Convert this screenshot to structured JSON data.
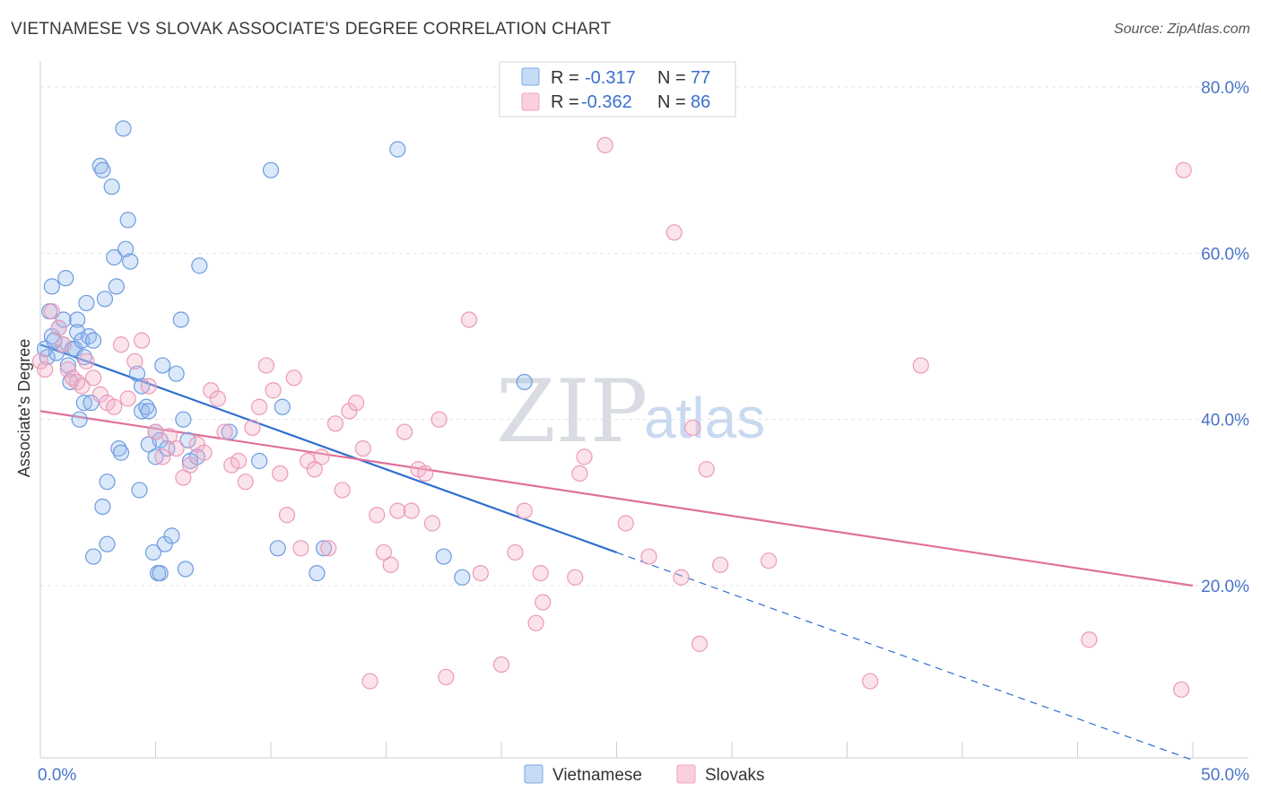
{
  "header": {
    "title": "VIETNAMESE VS SLOVAK ASSOCIATE'S DEGREE CORRELATION CHART",
    "source": "Source: ZipAtlas.com"
  },
  "watermark": {
    "zip": "ZIP",
    "atlas": "atlas"
  },
  "legend": {
    "r_label": "R =",
    "n_label": "N =",
    "rows": [
      {
        "r": "-0.317",
        "n": "77"
      },
      {
        "r": "-0.362",
        "n": "86"
      }
    ]
  },
  "chart_data": {
    "type": "scatter",
    "title": "VIETNAMESE VS SLOVAK ASSOCIATE'S DEGREE CORRELATION CHART",
    "xlabel": "",
    "ylabel": "Associate's Degree",
    "xlim": [
      0,
      50
    ],
    "ylim": [
      0,
      83
    ],
    "x_tick_labels": [
      "0.0%",
      "50.0%"
    ],
    "y_ticks": [
      20,
      40,
      60,
      80
    ],
    "y_tick_labels": [
      "20.0%",
      "40.0%",
      "60.0%",
      "80.0%"
    ],
    "grid": true,
    "legend_position": "top-center",
    "colors": {
      "vietnamese": "#7aa6e6",
      "slovaks": "#f0a3bf",
      "vietnamese_line": "#2f6fd0",
      "slovaks_line": "#e0709a"
    },
    "series": [
      {
        "name": "Vietnamese",
        "r": -0.317,
        "n": 77,
        "trend": {
          "x0": 0,
          "y0": 49.0,
          "x1": 25,
          "y1": 24.0,
          "dash_x1": 50,
          "dash_y1": -1.0
        },
        "points": [
          [
            0.3,
            47.5
          ],
          [
            0.5,
            50.0
          ],
          [
            0.4,
            53.0
          ],
          [
            0.5,
            56.0
          ],
          [
            0.7,
            48.0
          ],
          [
            0.8,
            51.0
          ],
          [
            1.0,
            52.0
          ],
          [
            1.0,
            49.0
          ],
          [
            1.1,
            57.0
          ],
          [
            1.2,
            46.5
          ],
          [
            1.3,
            44.5
          ],
          [
            1.4,
            48.5
          ],
          [
            1.5,
            48.5
          ],
          [
            1.6,
            52.0
          ],
          [
            1.6,
            50.5
          ],
          [
            1.7,
            40.0
          ],
          [
            1.8,
            49.5
          ],
          [
            1.9,
            42.0
          ],
          [
            2.0,
            54.0
          ],
          [
            2.1,
            50.0
          ],
          [
            2.2,
            42.0
          ],
          [
            2.3,
            49.5
          ],
          [
            2.3,
            23.5
          ],
          [
            2.6,
            70.5
          ],
          [
            2.7,
            70.0
          ],
          [
            2.7,
            29.5
          ],
          [
            2.8,
            54.5
          ],
          [
            2.9,
            25.0
          ],
          [
            2.9,
            32.5
          ],
          [
            3.1,
            68.0
          ],
          [
            3.2,
            59.5
          ],
          [
            3.3,
            56.0
          ],
          [
            3.4,
            36.5
          ],
          [
            3.5,
            36.0
          ],
          [
            3.6,
            75.0
          ],
          [
            3.7,
            60.5
          ],
          [
            3.8,
            64.0
          ],
          [
            3.9,
            59.0
          ],
          [
            4.2,
            45.5
          ],
          [
            4.3,
            31.5
          ],
          [
            4.4,
            44.0
          ],
          [
            4.4,
            41.0
          ],
          [
            4.6,
            41.5
          ],
          [
            4.7,
            37.0
          ],
          [
            4.7,
            41.0
          ],
          [
            4.9,
            24.0
          ],
          [
            5.0,
            35.5
          ],
          [
            5.0,
            38.5
          ],
          [
            5.1,
            21.5
          ],
          [
            5.2,
            37.5
          ],
          [
            5.2,
            21.5
          ],
          [
            5.3,
            46.5
          ],
          [
            5.4,
            25.0
          ],
          [
            5.5,
            36.5
          ],
          [
            5.7,
            26.0
          ],
          [
            5.9,
            45.5
          ],
          [
            6.1,
            52.0
          ],
          [
            6.2,
            40.0
          ],
          [
            6.3,
            22.0
          ],
          [
            6.4,
            37.5
          ],
          [
            6.5,
            35.0
          ],
          [
            6.8,
            35.5
          ],
          [
            6.9,
            58.5
          ],
          [
            8.2,
            38.5
          ],
          [
            9.5,
            35.0
          ],
          [
            10.0,
            70.0
          ],
          [
            10.3,
            24.5
          ],
          [
            10.5,
            41.5
          ],
          [
            12.0,
            21.5
          ],
          [
            12.3,
            24.5
          ],
          [
            15.5,
            72.5
          ],
          [
            17.5,
            23.5
          ],
          [
            18.3,
            21.0
          ],
          [
            21.0,
            44.5
          ],
          [
            0.2,
            48.5
          ],
          [
            0.6,
            49.5
          ],
          [
            1.9,
            47.5
          ]
        ]
      },
      {
        "name": "Slovaks",
        "r": -0.362,
        "n": 86,
        "trend": {
          "x0": 0,
          "y0": 41.0,
          "x1": 50,
          "y1": 20.0
        },
        "points": [
          [
            0.0,
            47.0
          ],
          [
            0.2,
            46.0
          ],
          [
            0.5,
            53.0
          ],
          [
            0.8,
            51.0
          ],
          [
            1.0,
            49.0
          ],
          [
            1.2,
            46.0
          ],
          [
            1.4,
            45.0
          ],
          [
            1.6,
            44.5
          ],
          [
            1.8,
            44.0
          ],
          [
            2.0,
            47.0
          ],
          [
            2.3,
            45.0
          ],
          [
            2.6,
            43.0
          ],
          [
            2.9,
            42.0
          ],
          [
            3.2,
            41.5
          ],
          [
            3.5,
            49.0
          ],
          [
            3.8,
            42.5
          ],
          [
            4.1,
            47.0
          ],
          [
            4.4,
            49.5
          ],
          [
            4.7,
            44.0
          ],
          [
            5.0,
            38.5
          ],
          [
            5.3,
            35.5
          ],
          [
            5.6,
            38.0
          ],
          [
            5.9,
            36.5
          ],
          [
            6.2,
            33.0
          ],
          [
            6.5,
            34.5
          ],
          [
            6.8,
            37.0
          ],
          [
            7.1,
            36.0
          ],
          [
            7.4,
            43.5
          ],
          [
            7.7,
            42.5
          ],
          [
            8.0,
            38.5
          ],
          [
            8.3,
            34.5
          ],
          [
            8.6,
            35.0
          ],
          [
            8.9,
            32.5
          ],
          [
            9.2,
            39.0
          ],
          [
            9.5,
            41.5
          ],
          [
            9.8,
            46.5
          ],
          [
            10.1,
            43.5
          ],
          [
            10.4,
            33.5
          ],
          [
            10.7,
            28.5
          ],
          [
            11.0,
            45.0
          ],
          [
            11.3,
            24.5
          ],
          [
            11.6,
            35.0
          ],
          [
            11.9,
            34.0
          ],
          [
            12.2,
            35.5
          ],
          [
            12.5,
            24.5
          ],
          [
            12.8,
            39.5
          ],
          [
            13.1,
            31.5
          ],
          [
            13.4,
            41.0
          ],
          [
            13.7,
            42.0
          ],
          [
            14.0,
            36.5
          ],
          [
            14.3,
            8.5
          ],
          [
            14.6,
            28.5
          ],
          [
            14.9,
            24.0
          ],
          [
            15.2,
            22.5
          ],
          [
            15.5,
            29.0
          ],
          [
            15.8,
            38.5
          ],
          [
            16.1,
            29.0
          ],
          [
            16.4,
            34.0
          ],
          [
            16.7,
            33.5
          ],
          [
            17.0,
            27.5
          ],
          [
            17.3,
            40.0
          ],
          [
            17.6,
            9.0
          ],
          [
            18.6,
            52.0
          ],
          [
            19.1,
            21.5
          ],
          [
            20.0,
            10.5
          ],
          [
            20.6,
            24.0
          ],
          [
            21.0,
            29.0
          ],
          [
            21.5,
            15.5
          ],
          [
            21.7,
            21.5
          ],
          [
            21.8,
            18.0
          ],
          [
            23.2,
            21.0
          ],
          [
            23.4,
            33.5
          ],
          [
            23.6,
            35.5
          ],
          [
            24.5,
            73.0
          ],
          [
            25.4,
            27.5
          ],
          [
            26.4,
            23.5
          ],
          [
            27.5,
            62.5
          ],
          [
            27.8,
            21.0
          ],
          [
            28.3,
            39.0
          ],
          [
            28.6,
            13.0
          ],
          [
            28.9,
            34.0
          ],
          [
            29.5,
            22.5
          ],
          [
            31.6,
            23.0
          ],
          [
            36.0,
            8.5
          ],
          [
            38.2,
            46.5
          ],
          [
            45.5,
            13.5
          ],
          [
            49.5,
            7.5
          ],
          [
            49.6,
            70.0
          ]
        ]
      }
    ]
  }
}
